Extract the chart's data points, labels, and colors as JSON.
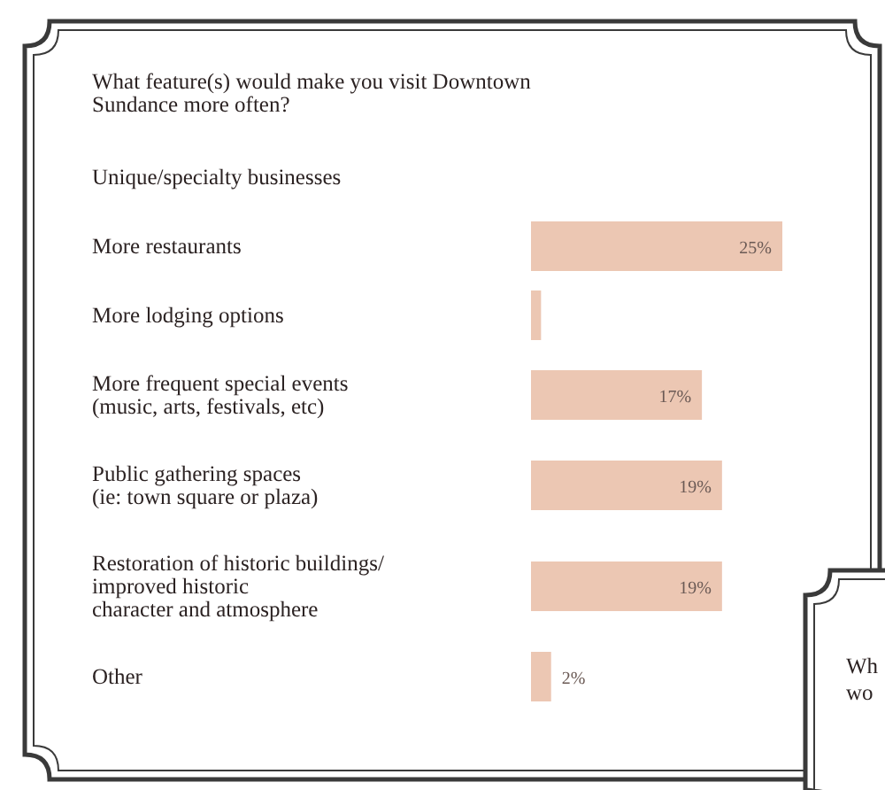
{
  "chart_data": {
    "type": "bar",
    "orientation": "horizontal",
    "title": "What feature(s) would make you visit Downtown Sundance more often?",
    "categories": [
      "Unique/specialty businesses",
      "More restaurants",
      "More lodging options",
      "More frequent special events\n(music, arts, festivals, etc)",
      "Public gathering spaces\n(ie: town square or plaza)",
      "Restoration of historic buildings/\nimproved historic\ncharacter and atmosphere",
      "Other"
    ],
    "values": [
      null,
      25,
      1,
      17,
      19,
      19,
      2
    ],
    "value_labels": [
      null,
      "25%",
      null,
      "17%",
      "19%",
      "19%",
      "2%"
    ],
    "color": "#ecc7b3",
    "annotations": [
      "Wh",
      "wo"
    ]
  }
}
